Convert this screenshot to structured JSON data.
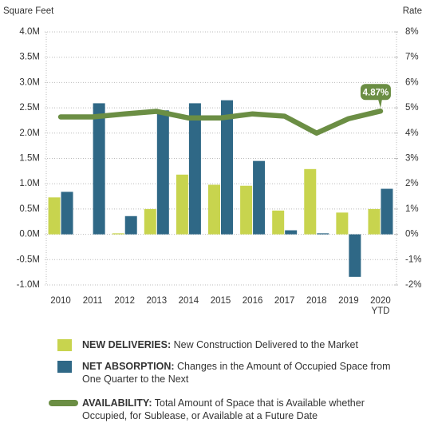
{
  "chart_data": {
    "type": "bar_line",
    "y_label": "Square Feet",
    "y2_label": "Rate",
    "categories": [
      "2010",
      "2011",
      "2012",
      "2013",
      "2014",
      "2015",
      "2016",
      "2017",
      "2018",
      "2019",
      "2020 YTD"
    ],
    "series": [
      {
        "name": "NEW DELIVERIES:",
        "description": "New Construction Delivered to the Market",
        "type": "bar",
        "color": "#c8d44e",
        "values": [
          730000,
          0,
          20000,
          500000,
          1180000,
          980000,
          960000,
          470000,
          1290000,
          430000,
          500000
        ]
      },
      {
        "name": "NET ABSORPTION:",
        "description": "Changes in the Amount of Occupied Space from One Quarter to the Next",
        "type": "bar",
        "color": "#2f6886",
        "values": [
          840000,
          2590000,
          360000,
          2450000,
          2590000,
          2650000,
          1450000,
          80000,
          20000,
          -840000,
          900000
        ]
      },
      {
        "name": "AVAILABILITY:",
        "description": "Total Amount of Space that is Available whether Occupied, for Sublease, or Available at a Future Date",
        "type": "line",
        "axis": "y2",
        "color": "#6b8e44",
        "values": [
          4.64,
          4.64,
          4.76,
          4.86,
          4.6,
          4.6,
          4.76,
          4.67,
          4.0,
          4.57,
          4.87
        ],
        "value_labels": [
          null,
          null,
          null,
          null,
          null,
          null,
          null,
          null,
          null,
          null,
          "4.87%"
        ]
      }
    ],
    "ylim": [
      -1000000,
      4000000
    ],
    "yticks": [
      {
        "value": -1000000,
        "label": "-1.0M"
      },
      {
        "value": -500000,
        "label": "-0.5M"
      },
      {
        "value": 0,
        "label": "0.0M"
      },
      {
        "value": 500000,
        "label": "0.5M"
      },
      {
        "value": 1000000,
        "label": "1.0M"
      },
      {
        "value": 1500000,
        "label": "1.5M"
      },
      {
        "value": 2000000,
        "label": "2.0M"
      },
      {
        "value": 2500000,
        "label": "2.5M"
      },
      {
        "value": 3000000,
        "label": "3.0M"
      },
      {
        "value": 3500000,
        "label": "3.5M"
      },
      {
        "value": 4000000,
        "label": "4.0M"
      }
    ],
    "y2lim": [
      -2,
      8
    ],
    "y2ticks": [
      {
        "value": -2,
        "label": "-2%"
      },
      {
        "value": -1,
        "label": "-1%"
      },
      {
        "value": 0,
        "label": "0%"
      },
      {
        "value": 1,
        "label": "1%"
      },
      {
        "value": 2,
        "label": "2%"
      },
      {
        "value": 3,
        "label": "3%"
      },
      {
        "value": 4,
        "label": "4%"
      },
      {
        "value": 5,
        "label": "5%"
      },
      {
        "value": 6,
        "label": "6%"
      },
      {
        "value": 7,
        "label": "7%"
      },
      {
        "value": 8,
        "label": "8%"
      }
    ],
    "grid": true
  }
}
